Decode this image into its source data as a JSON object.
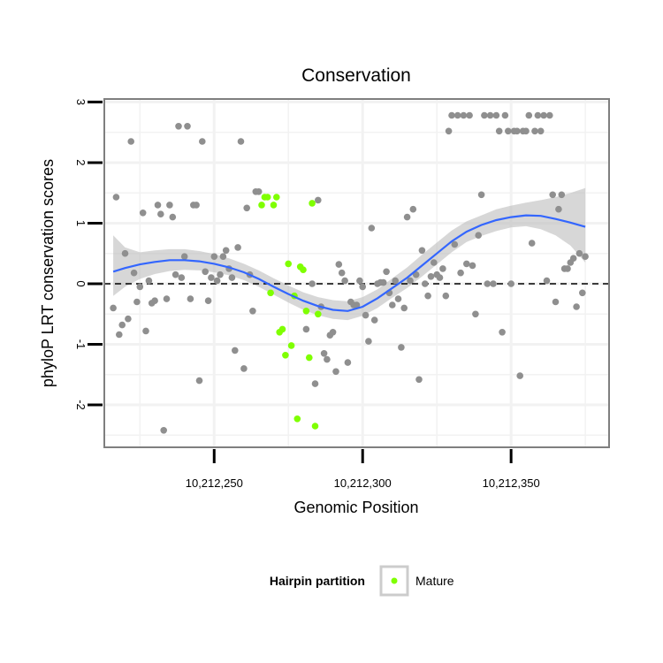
{
  "chart_data": {
    "type": "scatter",
    "title": "Conservation",
    "xlabel": "Genomic Position",
    "ylabel": "phyloP LRT conservation scores",
    "xlim": [
      10212213,
      10212383
    ],
    "ylim": [
      -2.7,
      3.05
    ],
    "x_ticks": [
      10212250,
      10212300,
      10212350
    ],
    "x_tick_labels": [
      "10,212,250",
      "10,212,300",
      "10,212,350"
    ],
    "y_ticks": [
      -2,
      -1,
      0,
      1,
      2,
      3
    ],
    "y_tick_labels": [
      "-2",
      "-1",
      "0",
      "1",
      "2",
      "3"
    ],
    "grid": true,
    "reference_line": {
      "y": 0,
      "style": "dashed",
      "color": "#000000"
    },
    "colors": {
      "other_points": "#8f8f8f",
      "mature_points": "#7fff00",
      "smooth_line": "#3366ff",
      "confidence_band": "#bdbdbd",
      "panel_border": "#7f7f7f",
      "grid": "#f2f2f2"
    },
    "series": [
      {
        "points": [
          [
            10212216,
            -0.4
          ],
          [
            10212217,
            1.43
          ],
          [
            10212218,
            -0.84
          ],
          [
            10212219,
            -0.68
          ],
          [
            10212220,
            0.5
          ],
          [
            10212221,
            -0.58
          ],
          [
            10212222,
            2.35
          ],
          [
            10212223,
            0.18
          ],
          [
            10212224,
            -0.3
          ],
          [
            10212225,
            -0.05
          ],
          [
            10212226,
            1.17
          ],
          [
            10212227,
            -0.78
          ],
          [
            10212228,
            0.05
          ],
          [
            10212229,
            -0.32
          ],
          [
            10212230,
            -0.28
          ],
          [
            10212231,
            1.3
          ],
          [
            10212232,
            1.15
          ],
          [
            10212233,
            -2.42
          ],
          [
            10212234,
            -0.25
          ],
          [
            10212235,
            1.3
          ],
          [
            10212236,
            1.1
          ],
          [
            10212237,
            0.15
          ],
          [
            10212238,
            2.6
          ],
          [
            10212239,
            0.1
          ],
          [
            10212240,
            0.45
          ],
          [
            10212241,
            2.6
          ],
          [
            10212242,
            -0.25
          ],
          [
            10212243,
            1.3
          ],
          [
            10212244,
            1.3
          ],
          [
            10212245,
            -1.6
          ],
          [
            10212246,
            2.35
          ],
          [
            10212247,
            0.2
          ],
          [
            10212248,
            -0.28
          ],
          [
            10212249,
            0.1
          ],
          [
            10212250,
            0.45
          ],
          [
            10212251,
            0.05
          ],
          [
            10212252,
            0.15
          ],
          [
            10212253,
            0.45
          ],
          [
            10212254,
            0.55
          ],
          [
            10212255,
            0.25
          ],
          [
            10212256,
            0.1
          ],
          [
            10212257,
            -1.1
          ],
          [
            10212258,
            0.6
          ],
          [
            10212259,
            2.35
          ],
          [
            10212260,
            -1.4
          ],
          [
            10212261,
            1.25
          ],
          [
            10212262,
            0.15
          ],
          [
            10212263,
            -0.45
          ],
          [
            10212264,
            1.52
          ],
          [
            10212265,
            1.52
          ],
          [
            10212281,
            -0.75
          ],
          [
            10212283,
            0.0
          ],
          [
            10212284,
            -1.65
          ],
          [
            10212285,
            1.38
          ],
          [
            10212286,
            -0.38
          ],
          [
            10212287,
            -1.15
          ],
          [
            10212288,
            -1.25
          ],
          [
            10212289,
            -0.85
          ],
          [
            10212290,
            -0.8
          ],
          [
            10212291,
            -1.45
          ],
          [
            10212292,
            0.32
          ],
          [
            10212293,
            0.18
          ],
          [
            10212294,
            0.05
          ],
          [
            10212295,
            -1.3
          ],
          [
            10212296,
            -0.3
          ],
          [
            10212297,
            -0.35
          ],
          [
            10212298,
            -0.35
          ],
          [
            10212299,
            0.05
          ],
          [
            10212300,
            -0.05
          ],
          [
            10212301,
            -0.52
          ],
          [
            10212302,
            -0.95
          ],
          [
            10212303,
            0.92
          ],
          [
            10212304,
            -0.6
          ],
          [
            10212305,
            0.0
          ],
          [
            10212306,
            0.02
          ],
          [
            10212307,
            0.02
          ],
          [
            10212308,
            0.2
          ],
          [
            10212309,
            -0.15
          ],
          [
            10212310,
            -0.35
          ],
          [
            10212311,
            0.05
          ],
          [
            10212312,
            -0.25
          ],
          [
            10212313,
            -1.05
          ],
          [
            10212314,
            -0.4
          ],
          [
            10212315,
            1.1
          ],
          [
            10212316,
            0.05
          ],
          [
            10212317,
            1.23
          ],
          [
            10212318,
            0.15
          ],
          [
            10212319,
            -1.58
          ],
          [
            10212320,
            0.55
          ],
          [
            10212321,
            0.0
          ],
          [
            10212322,
            -0.2
          ],
          [
            10212323,
            0.12
          ],
          [
            10212324,
            0.35
          ],
          [
            10212325,
            0.15
          ],
          [
            10212326,
            0.1
          ],
          [
            10212327,
            0.25
          ],
          [
            10212328,
            -0.2
          ],
          [
            10212329,
            2.52
          ],
          [
            10212330,
            2.78
          ],
          [
            10212331,
            0.65
          ],
          [
            10212332,
            2.78
          ],
          [
            10212333,
            0.18
          ],
          [
            10212334,
            2.78
          ],
          [
            10212335,
            0.33
          ],
          [
            10212336,
            2.78
          ],
          [
            10212337,
            0.3
          ],
          [
            10212338,
            -0.5
          ],
          [
            10212339,
            0.8
          ],
          [
            10212340,
            1.47
          ],
          [
            10212341,
            2.78
          ],
          [
            10212342,
            0.0
          ],
          [
            10212343,
            2.78
          ],
          [
            10212344,
            0.0
          ],
          [
            10212345,
            2.78
          ],
          [
            10212346,
            2.52
          ],
          [
            10212347,
            -0.8
          ],
          [
            10212348,
            2.78
          ],
          [
            10212349,
            2.52
          ],
          [
            10212350,
            0.0
          ],
          [
            10212351,
            2.52
          ],
          [
            10212352,
            2.52
          ],
          [
            10212353,
            -1.52
          ],
          [
            10212354,
            2.52
          ],
          [
            10212355,
            2.52
          ],
          [
            10212356,
            2.78
          ],
          [
            10212357,
            0.67
          ],
          [
            10212358,
            2.52
          ],
          [
            10212359,
            2.78
          ],
          [
            10212360,
            2.52
          ],
          [
            10212361,
            2.78
          ],
          [
            10212362,
            0.05
          ],
          [
            10212363,
            2.78
          ],
          [
            10212364,
            1.47
          ],
          [
            10212365,
            -0.3
          ],
          [
            10212366,
            1.23
          ],
          [
            10212367,
            1.47
          ],
          [
            10212368,
            0.25
          ],
          [
            10212369,
            0.25
          ],
          [
            10212370,
            0.35
          ],
          [
            10212371,
            0.42
          ],
          [
            10212372,
            -0.38
          ],
          [
            10212373,
            0.5
          ],
          [
            10212374,
            -0.15
          ],
          [
            10212375,
            0.45
          ]
        ]
      },
      {
        "name": "Mature",
        "points": [
          [
            10212266,
            1.3
          ],
          [
            10212267,
            1.43
          ],
          [
            10212268,
            1.43
          ],
          [
            10212269,
            -0.15
          ],
          [
            10212270,
            1.3
          ],
          [
            10212271,
            1.43
          ],
          [
            10212272,
            -0.8
          ],
          [
            10212273,
            -0.75
          ],
          [
            10212274,
            -1.18
          ],
          [
            10212275,
            0.33
          ],
          [
            10212276,
            -1.02
          ],
          [
            10212277,
            -0.2
          ],
          [
            10212278,
            -2.23
          ],
          [
            10212279,
            0.28
          ],
          [
            10212280,
            0.23
          ],
          [
            10212281,
            -0.45
          ],
          [
            10212282,
            -1.22
          ],
          [
            10212283,
            1.33
          ],
          [
            10212284,
            -2.35
          ],
          [
            10212285,
            -0.5
          ]
        ]
      }
    ],
    "smooth": {
      "x": [
        10212216,
        10212220,
        10212225,
        10212230,
        10212235,
        10212240,
        10212245,
        10212250,
        10212255,
        10212260,
        10212265,
        10212270,
        10212275,
        10212280,
        10212285,
        10212290,
        10212295,
        10212300,
        10212305,
        10212310,
        10212315,
        10212320,
        10212325,
        10212330,
        10212335,
        10212340,
        10212345,
        10212350,
        10212355,
        10212360,
        10212365,
        10212370,
        10212375
      ],
      "y": [
        0.2,
        0.26,
        0.32,
        0.36,
        0.39,
        0.39,
        0.37,
        0.33,
        0.27,
        0.19,
        0.08,
        -0.05,
        -0.17,
        -0.28,
        -0.37,
        -0.43,
        -0.45,
        -0.38,
        -0.24,
        -0.07,
        0.1,
        0.3,
        0.5,
        0.7,
        0.86,
        0.97,
        1.05,
        1.1,
        1.13,
        1.12,
        1.07,
        1.01,
        0.94
      ],
      "lower": [
        -0.2,
        -0.05,
        0.08,
        0.16,
        0.21,
        0.23,
        0.22,
        0.19,
        0.14,
        0.06,
        -0.05,
        -0.18,
        -0.31,
        -0.43,
        -0.52,
        -0.58,
        -0.6,
        -0.53,
        -0.4,
        -0.23,
        -0.07,
        0.12,
        0.32,
        0.52,
        0.69,
        0.79,
        0.87,
        0.93,
        0.95,
        0.9,
        0.8,
        0.63,
        0.35
      ],
      "upper": [
        0.8,
        0.6,
        0.52,
        0.55,
        0.57,
        0.57,
        0.54,
        0.49,
        0.42,
        0.33,
        0.22,
        0.09,
        -0.03,
        -0.14,
        -0.22,
        -0.27,
        -0.29,
        -0.22,
        -0.09,
        0.09,
        0.27,
        0.48,
        0.68,
        0.88,
        1.03,
        1.13,
        1.23,
        1.29,
        1.34,
        1.38,
        1.43,
        1.5,
        1.58
      ]
    },
    "legend": {
      "title": "Hairpin partition",
      "entries": [
        {
          "label": "Mature",
          "color": "#7fff00"
        }
      ],
      "position": "bottom"
    }
  }
}
